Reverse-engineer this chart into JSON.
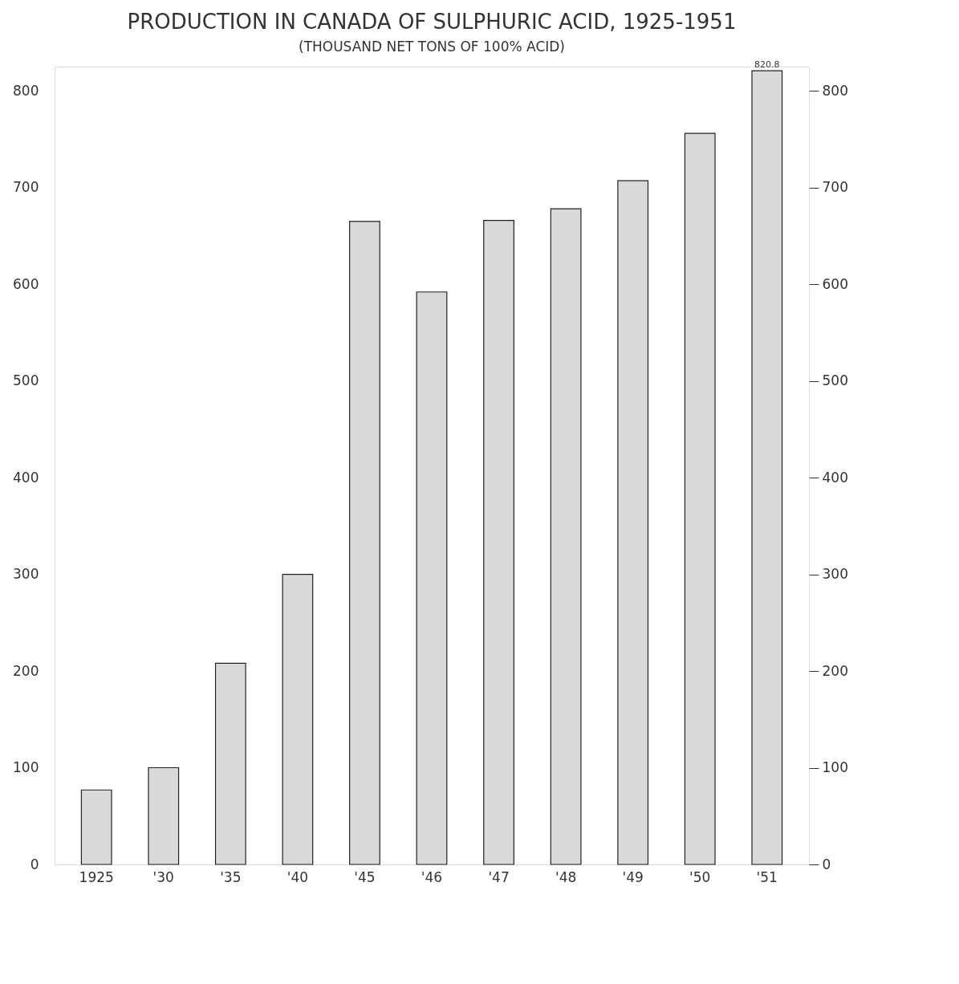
{
  "chart_data": {
    "type": "bar",
    "title": "PRODUCTION IN CANADA OF SULPHURIC ACID, 1925-1951",
    "subtitle": "(THOUSAND NET TONS OF 100% ACID)",
    "categories": [
      "1925",
      "'30",
      "'35",
      "'40",
      "'45",
      "'46",
      "'47",
      "'48",
      "'49",
      "'50",
      "'51"
    ],
    "values": [
      77,
      100,
      208,
      300,
      665,
      592,
      666,
      678,
      707,
      756,
      820.8
    ],
    "value_labels": [
      null,
      null,
      null,
      null,
      null,
      null,
      null,
      null,
      null,
      null,
      "820.8"
    ],
    "color": "#d9d9d9",
    "ylim": [
      0,
      825
    ],
    "yticks": [
      0,
      100,
      200,
      300,
      400,
      500,
      600,
      700,
      800
    ],
    "y2lim": [
      0,
      825
    ],
    "y2ticks": [
      0,
      100,
      200,
      300,
      400,
      500,
      600,
      700,
      800
    ],
    "grid": false
  }
}
